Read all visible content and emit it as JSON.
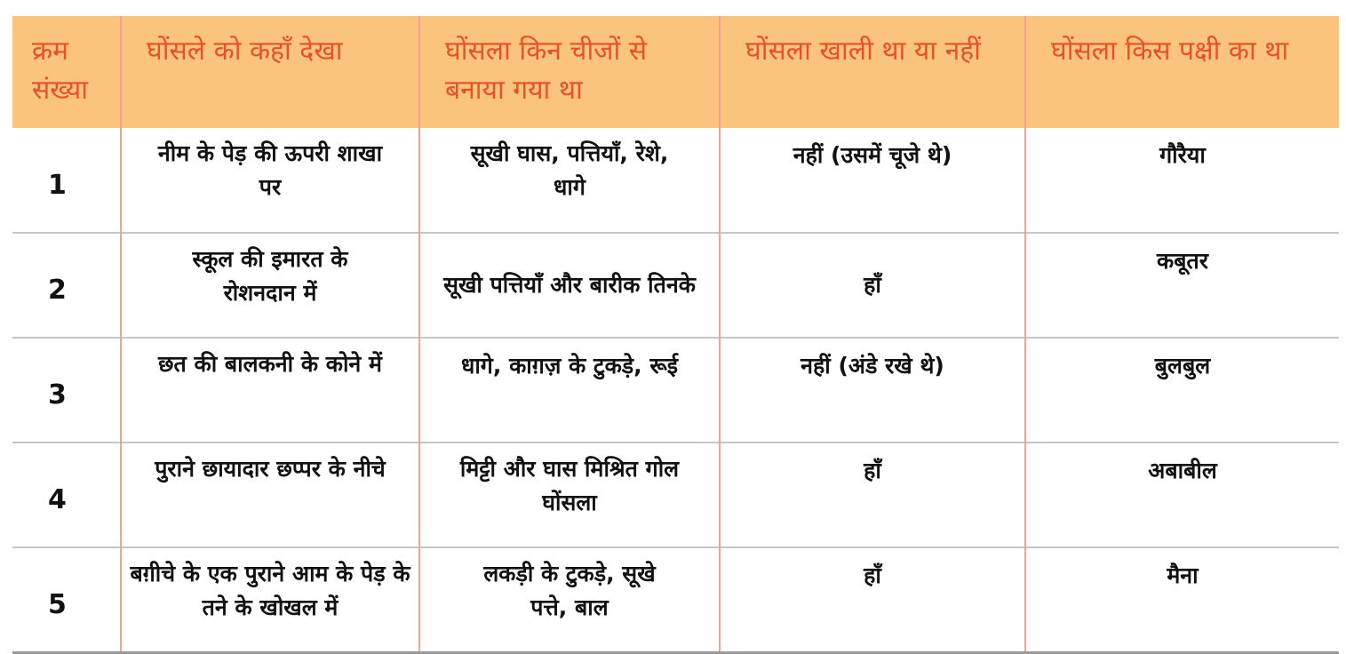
{
  "table": {
    "headers": [
      "क्रम संख्या",
      "घोंसले को कहाँ देखा",
      "घोंसला किन चीजों से बनाया गया था",
      "घोंसला खाली था या नहीं",
      "घोंसला किस पक्षी का था"
    ],
    "rows": [
      {
        "serial": "1",
        "location": "नीम के पेड़ की ऊपरी शाखा पर",
        "materials": "सूखी घास, पत्तियाँ, रेशे, धागे",
        "empty": "नहीं (उसमें चूजे थे)",
        "bird": "गौरैया"
      },
      {
        "serial": "2",
        "location": "स्कूल की इमारत के रोशनदान में",
        "materials": "सूखी पत्तियाँ और बारीक तिनके",
        "empty": "हाँ",
        "bird": "कबूतर"
      },
      {
        "serial": "3",
        "location": "छत की बालकनी के कोने में",
        "materials": "धागे, काग़ज़ के टुकड़े, रूई",
        "empty": "नहीं (अंडे रखे थे)",
        "bird": "बुलबुल"
      },
      {
        "serial": "4",
        "location": "पुराने छायादार छप्पर के नीचे",
        "materials": "मिट्टी और घास मिश्रित गोल घोंसला",
        "empty": "हाँ",
        "bird": "अबाबील"
      },
      {
        "serial": "5",
        "location": "बग़ीचे के एक पुराने आम के पेड़ के तने के खोखल में",
        "materials": "लकड़ी के टुकड़े, सूखे पत्ते, बाल",
        "empty": "हाँ",
        "bird": "मैना"
      }
    ]
  },
  "colors": {
    "header_bg": "#fbc47c",
    "header_text": "#e8502c",
    "column_divider": "#f0a498",
    "row_divider": "#c6c6c6"
  }
}
